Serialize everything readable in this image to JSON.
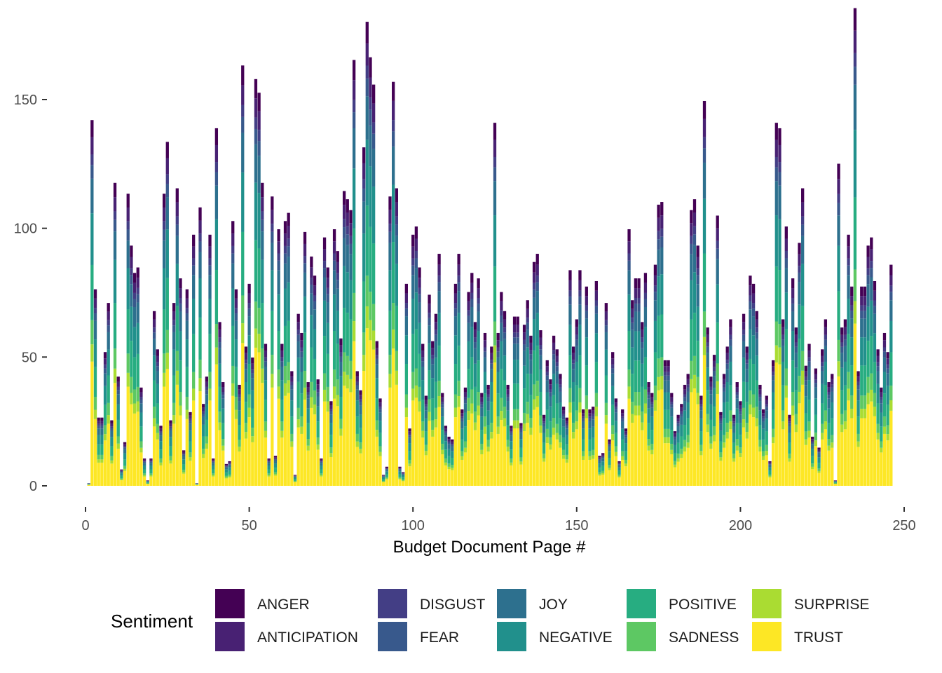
{
  "chart_data": {
    "type": "bar",
    "stacked": true,
    "xlabel": "Budget Document Page #",
    "ylabel": "",
    "xlim": [
      0,
      250
    ],
    "ylim": [
      0,
      175
    ],
    "x_ticks": [
      0,
      50,
      100,
      150,
      200,
      250
    ],
    "y_ticks": [
      0,
      50,
      100,
      150
    ],
    "grid": false,
    "legend_title": "Sentiment",
    "legend_position": "bottom",
    "series": [
      {
        "name": "ANGER",
        "color": "#440154"
      },
      {
        "name": "ANTICIPATION",
        "color": "#482173"
      },
      {
        "name": "DISGUST",
        "color": "#433E85"
      },
      {
        "name": "FEAR",
        "color": "#38598C"
      },
      {
        "name": "JOY",
        "color": "#2D708E"
      },
      {
        "name": "NEGATIVE",
        "color": "#21908C"
      },
      {
        "name": "POSITIVE",
        "color": "#27AD81"
      },
      {
        "name": "SADNESS",
        "color": "#5DC863"
      },
      {
        "name": "SURPRISE",
        "color": "#AADC32"
      },
      {
        "name": "TRUST",
        "color": "#FDE725"
      }
    ],
    "x": [
      1,
      2,
      3,
      4,
      5,
      6,
      7,
      8,
      9,
      10,
      11,
      12,
      13,
      14,
      15,
      16,
      17,
      18,
      19,
      20,
      21,
      22,
      23,
      24,
      25,
      26,
      27,
      28,
      29,
      30,
      31,
      32,
      33,
      34,
      35,
      36,
      37,
      38,
      39,
      40,
      41,
      42,
      43,
      44,
      45,
      46,
      47,
      48,
      49,
      50,
      51,
      52,
      53,
      54,
      55,
      56,
      57,
      58,
      59,
      60,
      61,
      62,
      63,
      64,
      65,
      66,
      67,
      68,
      69,
      70,
      71,
      72,
      73,
      74,
      75,
      76,
      77,
      78,
      79,
      80,
      81,
      82,
      83,
      84,
      85,
      86,
      87,
      88,
      89,
      90,
      91,
      92,
      93,
      94,
      95,
      96,
      97,
      98,
      99,
      100,
      101,
      102,
      103,
      104,
      105,
      106,
      107,
      108,
      109,
      110,
      111,
      112,
      113,
      114,
      115,
      116,
      117,
      118,
      119,
      120,
      121,
      122,
      123,
      124,
      125,
      126,
      127,
      128,
      129,
      130,
      131,
      132,
      133,
      134,
      135,
      136,
      137,
      138,
      139,
      140,
      141,
      142,
      143,
      144,
      145,
      146,
      147,
      148,
      149,
      150,
      151,
      152,
      153,
      154,
      155,
      156,
      157,
      158,
      159,
      160,
      161,
      162,
      163,
      164,
      165,
      166,
      167,
      168,
      169,
      170,
      171,
      172,
      173,
      174,
      175,
      176,
      177,
      178,
      179,
      180,
      181,
      182,
      183,
      184,
      185,
      186,
      187,
      188,
      189,
      190,
      191,
      192,
      193,
      194,
      195,
      196,
      197,
      198,
      199,
      200,
      201,
      202,
      203,
      204,
      205,
      206,
      207,
      208,
      209,
      210,
      211,
      212,
      213,
      214,
      215,
      216,
      217,
      218,
      219,
      220,
      221,
      222,
      223,
      224,
      225,
      226,
      227,
      228,
      229,
      230,
      231,
      232,
      233,
      234,
      235,
      236,
      237,
      238,
      239,
      240,
      241,
      242,
      243,
      244,
      245,
      246
    ],
    "totals": [
      1,
      134,
      72,
      25,
      25,
      49,
      67,
      24,
      111,
      40,
      6,
      16,
      107,
      88,
      78,
      80,
      36,
      10,
      2,
      10,
      64,
      50,
      22,
      107,
      126,
      24,
      67,
      109,
      76,
      13,
      72,
      27,
      92,
      1,
      102,
      30,
      40,
      92,
      10,
      131,
      60,
      38,
      8,
      9,
      97,
      72,
      37,
      154,
      51,
      74,
      47,
      149,
      144,
      111,
      52,
      10,
      106,
      11,
      94,
      52,
      97,
      100,
      42,
      4,
      63,
      56,
      93,
      38,
      84,
      77,
      39,
      10,
      91,
      80,
      31,
      94,
      86,
      54,
      108,
      105,
      101,
      156,
      42,
      35,
      124,
      170,
      157,
      147,
      53,
      32,
      4,
      7,
      106,
      148,
      109,
      7,
      5,
      74,
      21,
      92,
      95,
      80,
      52,
      33,
      70,
      53,
      63,
      85,
      34,
      22,
      18,
      17,
      74,
      85,
      28,
      36,
      71,
      78,
      60,
      76,
      34,
      56,
      37,
      51,
      133,
      56,
      71,
      64,
      37,
      22,
      62,
      62,
      23,
      59,
      68,
      55,
      82,
      85,
      57,
      26,
      46,
      39,
      55,
      50,
      41,
      29,
      25,
      79,
      51,
      61,
      79,
      28,
      73,
      28,
      29,
      75,
      11,
      12,
      67,
      17,
      49,
      32,
      9,
      28,
      21,
      94,
      68,
      76,
      76,
      60,
      78,
      38,
      34,
      81,
      103,
      104,
      46,
      46,
      34,
      20,
      26,
      30,
      37,
      41,
      101,
      105,
      88,
      33,
      141,
      58,
      40,
      48,
      99,
      27,
      41,
      51,
      61,
      26,
      38,
      31,
      63,
      51,
      77,
      74,
      64,
      37,
      28,
      33,
      9,
      46,
      133,
      131,
      61,
      95,
      26,
      76,
      58,
      89,
      109,
      44,
      52,
      18,
      43,
      14,
      50,
      61,
      38,
      41,
      2,
      118,
      58,
      61,
      92,
      73,
      175,
      42,
      73,
      73,
      88,
      91,
      75,
      50,
      36,
      56,
      49,
      81,
      4
    ]
  }
}
